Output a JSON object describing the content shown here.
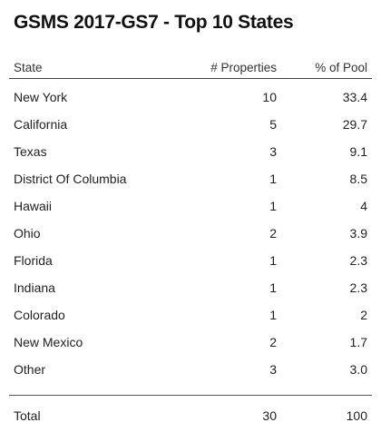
{
  "title": "GSMS 2017-GS7 - Top 10 States",
  "columns": {
    "state": "State",
    "properties": "# Properties",
    "pool": "% of Pool"
  },
  "rows": [
    {
      "state": "New York",
      "properties": "10",
      "pool": "33.4"
    },
    {
      "state": "California",
      "properties": "5",
      "pool": "29.7"
    },
    {
      "state": "Texas",
      "properties": "3",
      "pool": "9.1"
    },
    {
      "state": "District Of Columbia",
      "properties": "1",
      "pool": "8.5"
    },
    {
      "state": "Hawaii",
      "properties": "1",
      "pool": "4"
    },
    {
      "state": "Ohio",
      "properties": "2",
      "pool": "3.9"
    },
    {
      "state": "Florida",
      "properties": "1",
      "pool": "2.3"
    },
    {
      "state": "Indiana",
      "properties": "1",
      "pool": "2.3"
    },
    {
      "state": "Colorado",
      "properties": "1",
      "pool": "2"
    },
    {
      "state": "New Mexico",
      "properties": "2",
      "pool": "1.7"
    },
    {
      "state": "Other",
      "properties": "3",
      "pool": "3.0"
    }
  ],
  "total": {
    "label": "Total",
    "properties": "30",
    "pool": "100"
  },
  "chart_data": {
    "type": "table",
    "title": "GSMS 2017-GS7 - Top 10 States",
    "columns": [
      "State",
      "# Properties",
      "% of Pool"
    ],
    "rows": [
      [
        "New York",
        10,
        33.4
      ],
      [
        "California",
        5,
        29.7
      ],
      [
        "Texas",
        3,
        9.1
      ],
      [
        "District Of Columbia",
        1,
        8.5
      ],
      [
        "Hawaii",
        1,
        4
      ],
      [
        "Ohio",
        2,
        3.9
      ],
      [
        "Florida",
        1,
        2.3
      ],
      [
        "Indiana",
        1,
        2.3
      ],
      [
        "Colorado",
        1,
        2
      ],
      [
        "New Mexico",
        2,
        1.7
      ],
      [
        "Other",
        3,
        3.0
      ]
    ],
    "total": [
      "Total",
      30,
      100
    ]
  }
}
